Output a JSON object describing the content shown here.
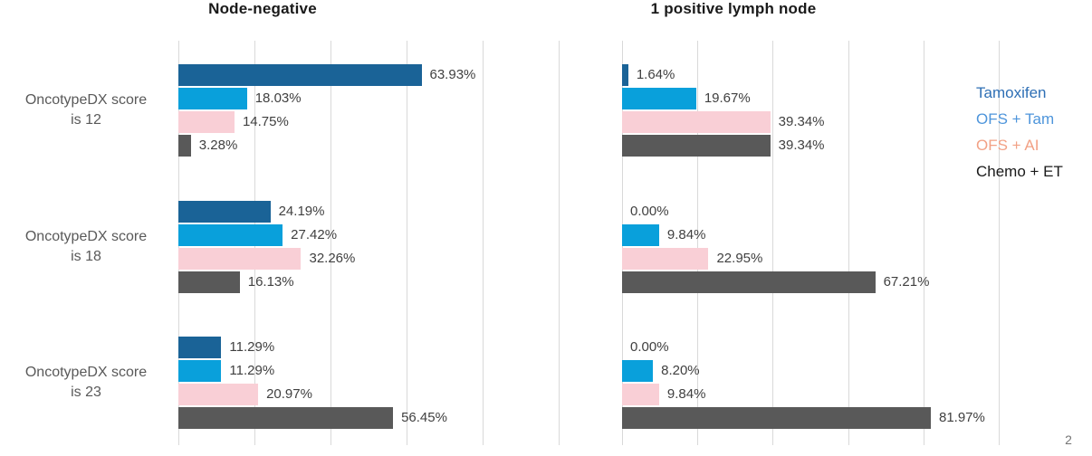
{
  "page_number": "2",
  "legend": {
    "items": [
      {
        "label": "Tamoxifen",
        "color": "#2e6fb5"
      },
      {
        "label": "OFS + Tam",
        "color": "#4e95db"
      },
      {
        "label": "OFS + AI",
        "color": "#f2a185"
      },
      {
        "label": "Chemo + ET",
        "color": "#1a1a1a"
      }
    ]
  },
  "chart_data": [
    {
      "type": "bar",
      "orientation": "horizontal",
      "title": "Node-negative",
      "xlim": [
        0,
        100
      ],
      "gridline_step_pct": 20,
      "grid": true,
      "axis_tick_labels_shown": false,
      "categories": [
        [
          "OncotypeDX score",
          "is 12"
        ],
        [
          "OncotypeDX score",
          "is 18"
        ],
        [
          "OncotypeDX score",
          "is 23"
        ]
      ],
      "series": [
        {
          "name": "Tamoxifen",
          "color": "#1a6397",
          "values": [
            63.93,
            24.19,
            11.29
          ],
          "labels": [
            "63.93%",
            "24.19%",
            "11.29%"
          ]
        },
        {
          "name": "OFS + Tam",
          "color": "#09a0db",
          "values": [
            18.03,
            27.42,
            11.29
          ],
          "labels": [
            "18.03%",
            "27.42%",
            "11.29%"
          ]
        },
        {
          "name": "OFS + AI",
          "color": "#f9cfd6",
          "values": [
            14.75,
            32.26,
            20.97
          ],
          "labels": [
            "14.75%",
            "32.26%",
            "20.97%"
          ]
        },
        {
          "name": "Chemo + ET",
          "color": "#595959",
          "values": [
            3.28,
            16.13,
            56.45
          ],
          "labels": [
            "3.28%",
            "16.13%",
            "56.45%"
          ]
        }
      ]
    },
    {
      "type": "bar",
      "orientation": "horizontal",
      "title": "1 positive lymph node",
      "xlim": [
        0,
        100
      ],
      "gridline_step_pct": 20,
      "grid": true,
      "axis_tick_labels_shown": false,
      "categories": [
        [
          "OncotypeDX score",
          "is 12"
        ],
        [
          "OncotypeDX score",
          "is 18"
        ],
        [
          "OncotypeDX score",
          "is 23"
        ]
      ],
      "categories_shown": false,
      "series": [
        {
          "name": "Tamoxifen",
          "color": "#1a6397",
          "values": [
            1.64,
            0,
            0
          ],
          "labels": [
            "1.64%",
            "0.00%",
            "0.00%"
          ]
        },
        {
          "name": "OFS + Tam",
          "color": "#09a0db",
          "values": [
            19.67,
            9.84,
            8.2
          ],
          "labels": [
            "19.67%",
            "9.84%",
            "8.20%"
          ]
        },
        {
          "name": "OFS + AI",
          "color": "#f9cfd6",
          "values": [
            39.34,
            22.95,
            9.84
          ],
          "labels": [
            "39.34%",
            "22.95%",
            "9.84%"
          ]
        },
        {
          "name": "Chemo + ET",
          "color": "#595959",
          "values": [
            39.34,
            67.21,
            81.97
          ],
          "labels": [
            "39.34%",
            "67.21%",
            "81.97%"
          ]
        }
      ]
    }
  ]
}
